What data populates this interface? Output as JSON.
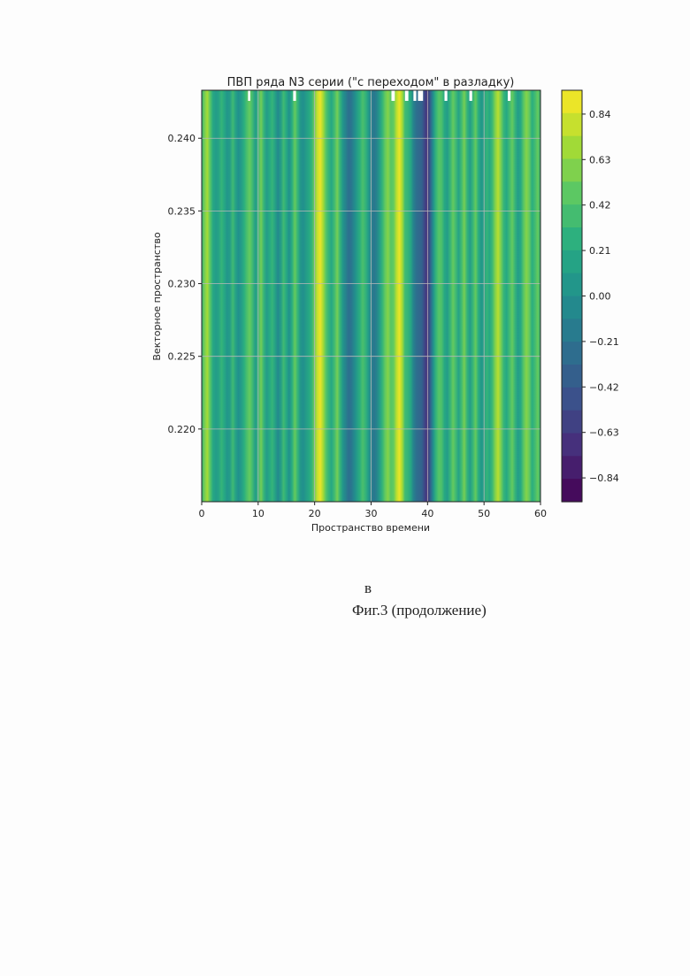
{
  "chart_data": {
    "type": "heatmap",
    "title": "ПВП ряда N3 серии (\"с переходом\" в разладку)",
    "xlabel": "Пространство времени",
    "ylabel": "Векторное пространство",
    "xlim": [
      0,
      60
    ],
    "ylim": [
      0.215,
      0.2433
    ],
    "x_ticks": [
      0,
      10,
      20,
      30,
      40,
      50,
      60
    ],
    "x_tick_labels": [
      "0",
      "10",
      "20",
      "30",
      "40",
      "50",
      "60"
    ],
    "y_ticks": [
      0.22,
      0.225,
      0.23,
      0.235,
      0.24
    ],
    "y_tick_labels": [
      "0.220",
      "0.225",
      "0.230",
      "0.235",
      "0.240"
    ],
    "grid": true,
    "colormap": "viridis",
    "colorbar": {
      "vmin": -0.95,
      "vmax": 0.95,
      "ticks": [
        0.84,
        0.63,
        0.42,
        0.21,
        0.0,
        -0.21,
        -0.42,
        -0.63,
        -0.84
      ],
      "tick_labels": [
        "0.84",
        "0.63",
        "0.42",
        "0.21",
        "0.00",
        "−0.21",
        "−0.42",
        "−0.63",
        "−0.84"
      ]
    },
    "column_profile": {
      "x": [
        0,
        0.5,
        1,
        1.5,
        2,
        2.5,
        3,
        3.5,
        4,
        4.5,
        5,
        5.5,
        6,
        6.5,
        7,
        7.5,
        8,
        8.5,
        9,
        9.5,
        10,
        10.5,
        11,
        11.5,
        12,
        12.5,
        13,
        13.5,
        14,
        14.5,
        15,
        15.5,
        16,
        16.5,
        17,
        17.5,
        18,
        18.5,
        19,
        19.5,
        20,
        20.5,
        21,
        21.5,
        22,
        22.5,
        23,
        23.5,
        24,
        24.5,
        25,
        25.5,
        26,
        26.5,
        27,
        27.5,
        28,
        28.5,
        29,
        29.5,
        30,
        30.5,
        31,
        31.5,
        32,
        32.5,
        33,
        33.5,
        34,
        34.5,
        35,
        35.5,
        36,
        36.5,
        37,
        37.5,
        38,
        38.5,
        39,
        39.5,
        40,
        40.5,
        41,
        41.5,
        42,
        42.5,
        43,
        43.5,
        44,
        44.5,
        45,
        45.5,
        46,
        46.5,
        47,
        47.5,
        48,
        48.5,
        49,
        49.5,
        50,
        50.5,
        51,
        51.5,
        52,
        52.5,
        53,
        53.5,
        54,
        54.5,
        55,
        55.5,
        56,
        56.5,
        57,
        57.5,
        58,
        58.5,
        59,
        59.5,
        60
      ],
      "values": [
        0.3,
        0.55,
        0.7,
        0.45,
        0.2,
        0.1,
        0.15,
        0.3,
        0.2,
        0.05,
        0.1,
        0.35,
        0.15,
        0.0,
        0.1,
        0.25,
        0.4,
        0.5,
        0.35,
        0.1,
        0.3,
        0.55,
        0.3,
        0.1,
        0.2,
        0.3,
        0.15,
        -0.05,
        0.1,
        0.35,
        0.2,
        0.0,
        0.25,
        0.5,
        0.3,
        0.05,
        0.0,
        0.1,
        0.2,
        0.3,
        0.55,
        0.8,
        0.9,
        0.7,
        0.45,
        0.3,
        0.2,
        0.35,
        0.55,
        0.3,
        0.05,
        -0.1,
        -0.25,
        -0.2,
        -0.05,
        0.1,
        0.25,
        0.4,
        0.3,
        0.1,
        -0.1,
        -0.2,
        -0.1,
        0.1,
        0.3,
        0.5,
        0.6,
        0.45,
        0.5,
        0.75,
        0.9,
        0.7,
        0.35,
        0.3,
        0.2,
        -0.1,
        -0.25,
        -0.3,
        -0.35,
        -0.55,
        -0.7,
        -0.35,
        0.0,
        0.3,
        0.45,
        0.4,
        0.2,
        0.1,
        0.3,
        0.5,
        0.35,
        0.15,
        0.35,
        0.55,
        0.3,
        0.1,
        0.3,
        0.5,
        0.25,
        0.05,
        0.15,
        0.3,
        0.2,
        0.35,
        0.6,
        0.75,
        0.55,
        0.3,
        0.2,
        0.35,
        0.5,
        0.3,
        0.1,
        0.2,
        0.45,
        0.6,
        0.5,
        0.25,
        0.35,
        0.5,
        0.3
      ]
    },
    "masked_segments": [
      [
        8.2,
        8.6
      ],
      [
        16.2,
        16.7
      ],
      [
        33.6,
        34.2
      ],
      [
        36.0,
        36.6
      ],
      [
        37.5,
        38.0
      ],
      [
        38.3,
        39.2
      ],
      [
        43.0,
        43.5
      ],
      [
        47.4,
        47.9
      ],
      [
        54.2,
        54.7
      ]
    ]
  },
  "caption": {
    "panel_letter": "в",
    "figure_label": "Фиг.3 (продолжение)"
  }
}
